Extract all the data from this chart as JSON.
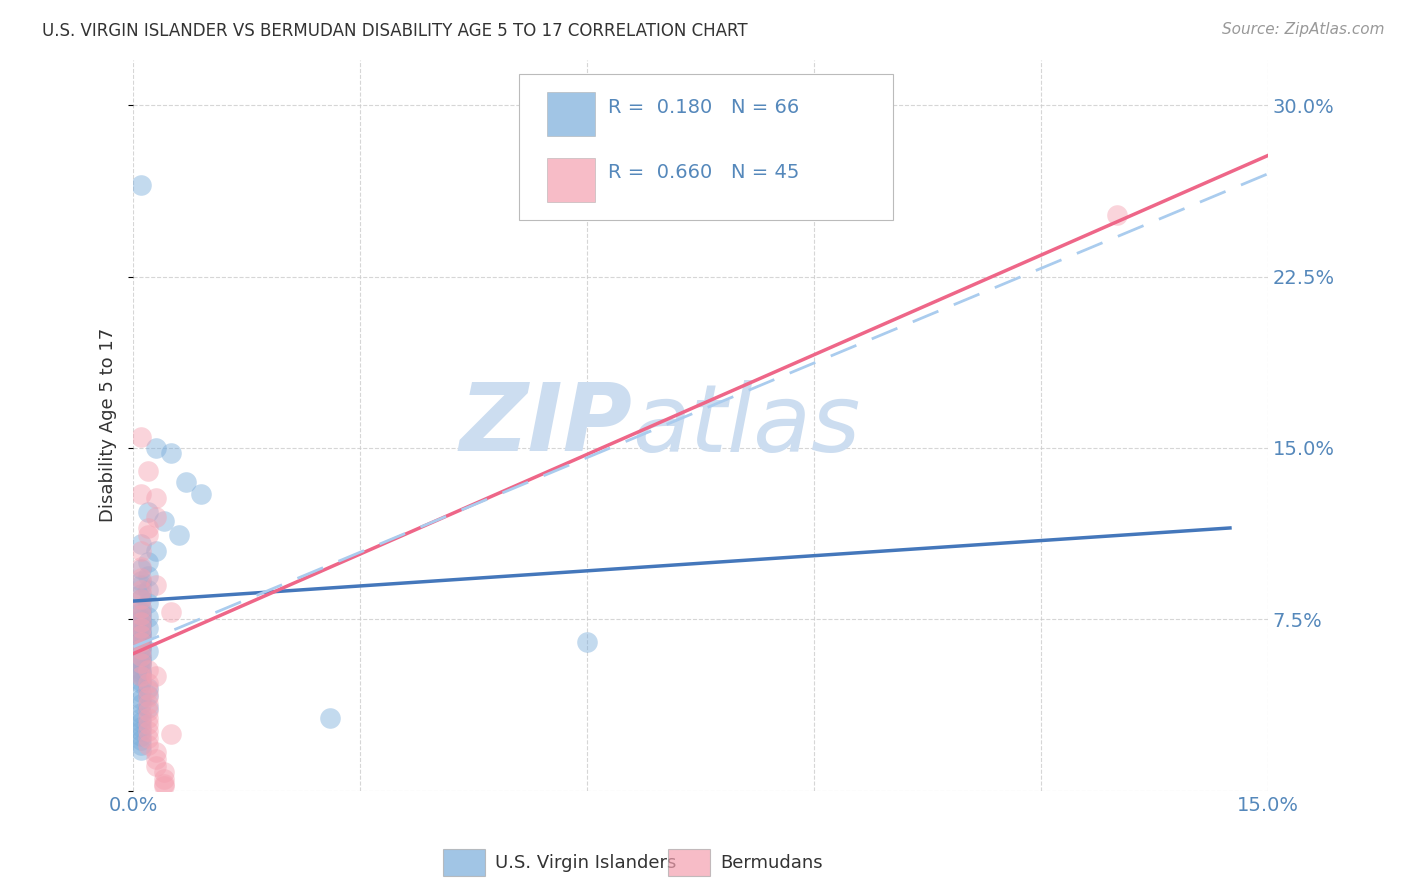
{
  "title": "U.S. VIRGIN ISLANDER VS BERMUDAN DISABILITY AGE 5 TO 17 CORRELATION CHART",
  "source": "Source: ZipAtlas.com",
  "ylabel": "Disability Age 5 to 17",
  "xlim": [
    0.0,
    0.15
  ],
  "ylim": [
    0.0,
    0.32
  ],
  "xticks": [
    0.0,
    0.03,
    0.06,
    0.09,
    0.12,
    0.15
  ],
  "yticks": [
    0.0,
    0.075,
    0.15,
    0.225,
    0.3
  ],
  "xtick_labels": [
    "0.0%",
    "",
    "",
    "",
    "",
    "15.0%"
  ],
  "ytick_labels_right": [
    "",
    "7.5%",
    "15.0%",
    "22.5%",
    "30.0%"
  ],
  "color_blue": "#7AADDB",
  "color_pink": "#F4A0B0",
  "line_blue": "#4477BB",
  "line_pink": "#EE6688",
  "line_dashed": "#AACCEE",
  "background": "#FFFFFF",
  "watermark_zip": "ZIP",
  "watermark_atlas": "atlas",
  "watermark_color": "#CCDDF0",
  "grid_color": "#CCCCCC",
  "title_color": "#333333",
  "axis_label_color": "#5588BB",
  "blue_scatter": [
    [
      0.001,
      0.265
    ],
    [
      0.003,
      0.15
    ],
    [
      0.005,
      0.148
    ],
    [
      0.007,
      0.135
    ],
    [
      0.009,
      0.13
    ],
    [
      0.002,
      0.122
    ],
    [
      0.004,
      0.118
    ],
    [
      0.006,
      0.112
    ],
    [
      0.001,
      0.108
    ],
    [
      0.003,
      0.105
    ],
    [
      0.002,
      0.1
    ],
    [
      0.001,
      0.097
    ],
    [
      0.002,
      0.094
    ],
    [
      0.001,
      0.092
    ],
    [
      0.001,
      0.09
    ],
    [
      0.002,
      0.088
    ],
    [
      0.001,
      0.086
    ],
    [
      0.001,
      0.084
    ],
    [
      0.002,
      0.082
    ],
    [
      0.001,
      0.08
    ],
    [
      0.001,
      0.078
    ],
    [
      0.001,
      0.077
    ],
    [
      0.002,
      0.076
    ],
    [
      0.001,
      0.075
    ],
    [
      0.001,
      0.074
    ],
    [
      0.001,
      0.073
    ],
    [
      0.001,
      0.072
    ],
    [
      0.002,
      0.071
    ],
    [
      0.001,
      0.07
    ],
    [
      0.001,
      0.069
    ],
    [
      0.001,
      0.068
    ],
    [
      0.001,
      0.067
    ],
    [
      0.001,
      0.066
    ],
    [
      0.001,
      0.065
    ],
    [
      0.001,
      0.064
    ],
    [
      0.001,
      0.063
    ],
    [
      0.001,
      0.062
    ],
    [
      0.002,
      0.061
    ],
    [
      0.001,
      0.06
    ],
    [
      0.001,
      0.058
    ],
    [
      0.001,
      0.057
    ],
    [
      0.001,
      0.056
    ],
    [
      0.001,
      0.055
    ],
    [
      0.001,
      0.053
    ],
    [
      0.001,
      0.052
    ],
    [
      0.001,
      0.051
    ],
    [
      0.001,
      0.05
    ],
    [
      0.001,
      0.048
    ],
    [
      0.001,
      0.047
    ],
    [
      0.002,
      0.045
    ],
    [
      0.001,
      0.043
    ],
    [
      0.002,
      0.042
    ],
    [
      0.001,
      0.04
    ],
    [
      0.001,
      0.038
    ],
    [
      0.002,
      0.036
    ],
    [
      0.001,
      0.034
    ],
    [
      0.001,
      0.032
    ],
    [
      0.001,
      0.03
    ],
    [
      0.001,
      0.028
    ],
    [
      0.06,
      0.065
    ],
    [
      0.026,
      0.032
    ],
    [
      0.001,
      0.026
    ],
    [
      0.001,
      0.024
    ],
    [
      0.001,
      0.022
    ],
    [
      0.001,
      0.02
    ],
    [
      0.001,
      0.018
    ]
  ],
  "pink_scatter": [
    [
      0.13,
      0.252
    ],
    [
      0.001,
      0.155
    ],
    [
      0.002,
      0.14
    ],
    [
      0.003,
      0.128
    ],
    [
      0.003,
      0.12
    ],
    [
      0.002,
      0.112
    ],
    [
      0.001,
      0.105
    ],
    [
      0.001,
      0.098
    ],
    [
      0.001,
      0.093
    ],
    [
      0.001,
      0.088
    ],
    [
      0.001,
      0.084
    ],
    [
      0.001,
      0.08
    ],
    [
      0.001,
      0.077
    ],
    [
      0.001,
      0.074
    ],
    [
      0.001,
      0.071
    ],
    [
      0.001,
      0.068
    ],
    [
      0.001,
      0.065
    ],
    [
      0.001,
      0.062
    ],
    [
      0.001,
      0.059
    ],
    [
      0.001,
      0.056
    ],
    [
      0.002,
      0.053
    ],
    [
      0.001,
      0.05
    ],
    [
      0.002,
      0.047
    ],
    [
      0.002,
      0.044
    ],
    [
      0.002,
      0.041
    ],
    [
      0.002,
      0.038
    ],
    [
      0.002,
      0.035
    ],
    [
      0.002,
      0.032
    ],
    [
      0.002,
      0.029
    ],
    [
      0.002,
      0.026
    ],
    [
      0.002,
      0.023
    ],
    [
      0.002,
      0.02
    ],
    [
      0.003,
      0.017
    ],
    [
      0.003,
      0.014
    ],
    [
      0.003,
      0.011
    ],
    [
      0.004,
      0.008
    ],
    [
      0.004,
      0.005
    ],
    [
      0.003,
      0.05
    ],
    [
      0.004,
      0.003
    ],
    [
      0.004,
      0.002
    ],
    [
      0.003,
      0.09
    ],
    [
      0.005,
      0.078
    ],
    [
      0.002,
      0.115
    ],
    [
      0.001,
      0.13
    ],
    [
      0.005,
      0.025
    ]
  ],
  "blue_line_x": [
    0.0,
    0.145
  ],
  "blue_line_y": [
    0.083,
    0.115
  ],
  "pink_line_x": [
    0.0,
    0.15
  ],
  "pink_line_y": [
    0.06,
    0.278
  ],
  "dashed_line_x": [
    0.0,
    0.15
  ],
  "dashed_line_y": [
    0.063,
    0.27
  ]
}
